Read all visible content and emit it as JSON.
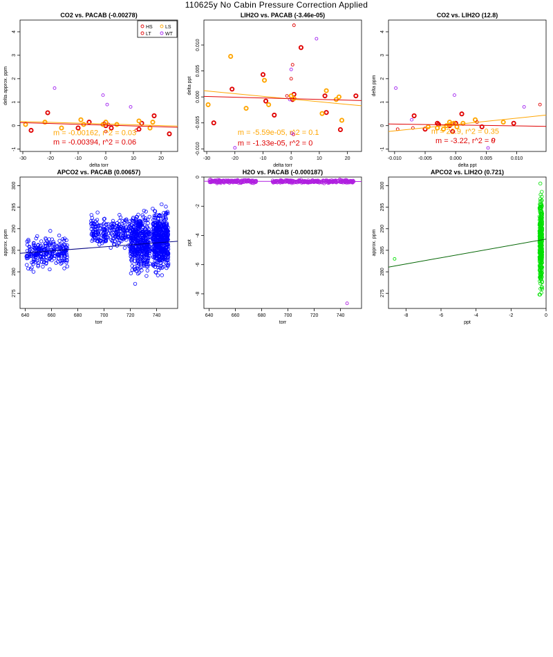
{
  "title": "110625y   No Cabin Pressure Correction Applied",
  "colors": {
    "HS": "#e00000",
    "LS": "#ffa500",
    "LT": "#e00000",
    "WT": "#a020f0",
    "blue": "#0000ff",
    "magenta": "#b020e0",
    "green": "#00e000",
    "darkgreen": "#006400"
  },
  "chart_data": [
    {
      "id": "p1",
      "type": "scatter",
      "title": "CO2 vs. PACAB (-0.00278)",
      "xlabel": "delta torr",
      "ylabel": "delta approx. ppm",
      "xlim": [
        -31,
        26
      ],
      "ylim": [
        -1.1,
        4.5
      ],
      "xticks": [
        -30,
        -20,
        -10,
        0,
        10,
        20
      ],
      "yticks": [
        -1,
        0,
        1,
        2,
        3,
        4
      ],
      "legend": {
        "position": "top-right",
        "entries": [
          {
            "label": "HS",
            "color": "#e00000"
          },
          {
            "label": "LS",
            "color": "#ffa500"
          },
          {
            "label": "LT",
            "color": "#e00000"
          },
          {
            "label": "WT",
            "color": "#a020f0"
          }
        ]
      },
      "series": [
        {
          "name": "HS",
          "color": "#e00000",
          "thick": true,
          "points": [
            [
              -21,
              0.55
            ],
            [
              -27,
              -0.2
            ],
            [
              -10,
              -0.1
            ],
            [
              -6,
              0.15
            ],
            [
              0,
              0.0
            ],
            [
              2,
              -0.1
            ],
            [
              12,
              -0.15
            ],
            [
              17.5,
              0.42
            ],
            [
              23,
              -0.35
            ],
            [
              13,
              0.1
            ]
          ]
        },
        {
          "name": "LS",
          "color": "#ffa500",
          "thick": true,
          "points": [
            [
              -29,
              0.05
            ],
            [
              -22,
              0.15
            ],
            [
              -16,
              -0.1
            ],
            [
              -9,
              0.25
            ],
            [
              -8,
              0.05
            ],
            [
              -1,
              0.05
            ],
            [
              0,
              0.15
            ],
            [
              4,
              0.05
            ],
            [
              12,
              0.2
            ],
            [
              17,
              0.15
            ],
            [
              16,
              -0.1
            ]
          ]
        },
        {
          "name": "LT",
          "color": "#e00000",
          "thick": false,
          "points": [
            [
              -0.5,
              0.1
            ],
            [
              0,
              -0.25
            ],
            [
              1,
              0.05
            ],
            [
              11,
              -0.2
            ]
          ]
        },
        {
          "name": "WT",
          "color": "#a020f0",
          "thick": false,
          "points": [
            [
              -18.5,
              1.6
            ],
            [
              -1,
              1.3
            ],
            [
              9,
              0.8
            ],
            [
              0.5,
              0.9
            ]
          ]
        }
      ],
      "lines": [
        {
          "color": "#ffa500",
          "x": [
            -31,
            26
          ],
          "y": [
            0.18,
            -0.02
          ]
        },
        {
          "color": "#e00000",
          "x": [
            -31,
            26
          ],
          "y": [
            0.13,
            -0.07
          ]
        }
      ],
      "annotations": [
        {
          "text": "m = -0.00162, r^2 = 0.03",
          "color": "#ffa500",
          "x": -19,
          "y": -0.4
        },
        {
          "text": "m = -0.00394, r^2 = 0.06",
          "color": "#e00000",
          "x": -19,
          "y": -0.8
        }
      ]
    },
    {
      "id": "p2",
      "type": "scatter",
      "title": "LIH2O vs. PACAB (-3.46e-05)",
      "xlabel": "delta torr",
      "ylabel": "delta ppt",
      "xlim": [
        -31,
        25
      ],
      "ylim": [
        -0.0105,
        0.0148
      ],
      "xticks": [
        -30,
        -20,
        -10,
        0,
        10,
        20
      ],
      "yticks": [
        -0.01,
        -0.005,
        0,
        0.005,
        0.01
      ],
      "yticklabels": [
        "-0.010",
        "-0.005",
        "0.000",
        "0.005",
        "0.010"
      ],
      "series": [
        {
          "name": "HS",
          "color": "#e00000",
          "thick": true,
          "points": [
            [
              -27.5,
              -0.005
            ],
            [
              -21,
              0.0015
            ],
            [
              -10,
              0.0043
            ],
            [
              -9,
              -0.0008
            ],
            [
              -6,
              -0.0035
            ],
            [
              3.5,
              0.0095
            ],
            [
              0.5,
              -0.0005
            ],
            [
              1,
              0.0005
            ],
            [
              12,
              0.0002
            ],
            [
              12.5,
              -0.003
            ],
            [
              17.5,
              -0.0063
            ],
            [
              23,
              0.0002
            ]
          ]
        },
        {
          "name": "LS",
          "color": "#ffa500",
          "thick": true,
          "points": [
            [
              -29.5,
              -0.0015
            ],
            [
              -21.5,
              0.0078
            ],
            [
              -9.5,
              0.0032
            ],
            [
              -16,
              -0.0022
            ],
            [
              -8,
              -0.0015
            ],
            [
              0,
              0.0002
            ],
            [
              1,
              -0.0003
            ],
            [
              11,
              -0.0032
            ],
            [
              12.5,
              0.0012
            ],
            [
              16,
              -0.0005
            ],
            [
              17,
              0.0
            ],
            [
              18,
              -0.0045
            ]
          ]
        },
        {
          "name": "LT",
          "color": "#e00000",
          "thick": false,
          "points": [
            [
              1,
              0.0138
            ],
            [
              0.5,
              0.0062
            ],
            [
              0,
              0.0035
            ],
            [
              -1.5,
              0.0002
            ],
            [
              0.8,
              -0.0072
            ]
          ]
        },
        {
          "name": "WT",
          "color": "#a020f0",
          "thick": false,
          "points": [
            [
              9,
              0.0112
            ],
            [
              0,
              0.0053
            ],
            [
              -20,
              -0.0098
            ],
            [
              0.3,
              -0.007
            ],
            [
              -0.5,
              -0.0005
            ]
          ]
        }
      ],
      "lines": [
        {
          "color": "#ffa500",
          "x": [
            -31,
            25
          ],
          "y": [
            0.0012,
            -0.0017
          ]
        },
        {
          "color": "#e00000",
          "x": [
            -31,
            25
          ],
          "y": [
            0.0001,
            -0.0007
          ]
        }
      ],
      "annotations": [
        {
          "text": "m = -5.59e-05, r^2 = 0.1",
          "color": "#ffa500",
          "x": -19,
          "y": -0.0073
        },
        {
          "text": "m = -1.33e-05, r^2 = 0",
          "color": "#e00000",
          "x": -19,
          "y": -0.0094
        }
      ]
    },
    {
      "id": "p3",
      "type": "scatter",
      "title": "CO2 vs. LIH2O (12.8)",
      "xlabel": "delta ppt",
      "ylabel": "delta ppm",
      "xlim": [
        -0.011,
        0.0148
      ],
      "ylim": [
        -1.1,
        4.5
      ],
      "xticks": [
        -0.01,
        -0.005,
        0,
        0.005,
        0.01
      ],
      "xticklabels": [
        "-0.010",
        "-0.005",
        "0.000",
        "0.005",
        "0.010"
      ],
      "yticks": [
        -1,
        0,
        1,
        2,
        3,
        4
      ],
      "series": [
        {
          "name": "HS",
          "color": "#e00000",
          "thick": true,
          "points": [
            [
              -0.0068,
              0.42
            ],
            [
              -0.005,
              -0.15
            ],
            [
              -0.003,
              0.1
            ],
            [
              -0.0028,
              0.05
            ],
            [
              -0.001,
              0.0
            ],
            [
              0.0,
              0.1
            ],
            [
              0.001,
              0.5
            ],
            [
              0.0043,
              -0.05
            ],
            [
              0.0095,
              0.1
            ],
            [
              -0.0005,
              -0.25
            ]
          ]
        },
        {
          "name": "LS",
          "color": "#ffa500",
          "thick": true,
          "points": [
            [
              -0.0045,
              -0.05
            ],
            [
              -0.003,
              -0.1
            ],
            [
              -0.002,
              -0.15
            ],
            [
              -0.0015,
              0.0
            ],
            [
              -0.001,
              0.15
            ],
            [
              -0.0003,
              0.1
            ],
            [
              0.0002,
              -0.05
            ],
            [
              0.0012,
              0.1
            ],
            [
              0.0032,
              0.25
            ],
            [
              0.0078,
              0.15
            ],
            [
              -0.0008,
              0.05
            ]
          ]
        },
        {
          "name": "LT",
          "color": "#e00000",
          "thick": false,
          "points": [
            [
              -0.0095,
              -0.15
            ],
            [
              -0.007,
              -0.1
            ],
            [
              0.0035,
              0.15
            ],
            [
              0.0062,
              -0.6
            ]
          ]
        },
        {
          "name": "WT",
          "color": "#a020f0",
          "thick": false,
          "points": [
            [
              -0.0098,
              1.6
            ],
            [
              -0.0072,
              0.25
            ],
            [
              -0.0002,
              1.3
            ],
            [
              0.0112,
              0.8
            ],
            [
              0.0053,
              -0.95
            ]
          ]
        },
        {
          "name": "",
          "color": "#e00000",
          "thick": false,
          "points": [
            [
              0.0138,
              0.9
            ]
          ]
        }
      ],
      "lines": [
        {
          "color": "#ffa500",
          "x": [
            -0.011,
            0.0148
          ],
          "y": [
            -0.25,
            0.45
          ]
        },
        {
          "color": "#e00000",
          "x": [
            -0.011,
            0.0148
          ],
          "y": [
            0.07,
            -0.03
          ]
        }
      ],
      "annotations": [
        {
          "text": "m = 22.9, r^2 = 0.35",
          "color": "#ffa500",
          "x": -0.004,
          "y": -0.35
        },
        {
          "text": "m = -3.22, r^2 = 0",
          "color": "#e00000",
          "x": -0.0033,
          "y": -0.75
        }
      ]
    },
    {
      "id": "p4",
      "type": "scatter",
      "title": "APCO2 vs. PACAB (0.00657)",
      "xlabel": "torr",
      "ylabel": "approx. ppm",
      "xlim": [
        636,
        756
      ],
      "ylim": [
        271.5,
        302
      ],
      "xticks": [
        640,
        660,
        680,
        700,
        720,
        740
      ],
      "yticks": [
        275,
        280,
        285,
        290,
        295,
        300
      ],
      "clusters": [
        {
          "color": "#0000ff",
          "count": 260,
          "xmin": 640,
          "xmax": 672,
          "ymean": 284.5,
          "ysd": 1.7,
          "ymin": 279,
          "ymax": 289.5,
          "seed": 11
        },
        {
          "color": "#0000ff",
          "count": 300,
          "xmin": 690,
          "xmax": 730,
          "ymean": 289.3,
          "ysd": 1.6,
          "ymin": 283,
          "ymax": 294,
          "seed": 23
        },
        {
          "color": "#0000ff",
          "count": 380,
          "xmin": 720,
          "xmax": 735,
          "ymean": 286.5,
          "ysd": 3.0,
          "ymin": 272.5,
          "ymax": 300.5,
          "seed": 37
        },
        {
          "color": "#0000ff",
          "count": 520,
          "xmin": 737,
          "xmax": 749,
          "ymean": 287,
          "ysd": 3.0,
          "ymin": 279,
          "ymax": 297.5,
          "seed": 51
        }
      ],
      "lines": [
        {
          "color": "#000080",
          "x": [
            636,
            756
          ],
          "y": [
            284.3,
            287.1
          ]
        }
      ]
    },
    {
      "id": "p5",
      "type": "scatter",
      "title": "H2O vs. PACAB (-0.000187)",
      "xlabel": "torr",
      "ylabel": "ppt",
      "xlim": [
        636,
        756
      ],
      "ylim": [
        -9,
        0
      ],
      "xticks": [
        640,
        660,
        680,
        700,
        720,
        740
      ],
      "yticks": [
        -8,
        -6,
        -4,
        -2,
        0
      ],
      "clusters": [
        {
          "color": "#b020e0",
          "count": 160,
          "xmin": 640,
          "xmax": 676,
          "ymean": -0.3,
          "ysd": 0.05,
          "ymin": -0.45,
          "ymax": -0.15,
          "seed": 61
        },
        {
          "color": "#b020e0",
          "count": 260,
          "xmin": 688,
          "xmax": 750,
          "ymean": -0.3,
          "ysd": 0.05,
          "ymin": -0.45,
          "ymax": -0.15,
          "seed": 73
        }
      ],
      "points": [
        {
          "color": "#b020e0",
          "x": 745,
          "y": -8.65
        }
      ],
      "lines": [
        {
          "color": "#b020e0",
          "x": [
            636,
            756
          ],
          "y": [
            -0.29,
            -0.31
          ]
        }
      ]
    },
    {
      "id": "p6",
      "type": "scatter",
      "title": "APCO2 vs. LIH2O (0.721)",
      "xlabel": "ppt",
      "ylabel": "approx. ppm",
      "xlim": [
        -9,
        0
      ],
      "ylim": [
        271.5,
        302
      ],
      "xticks": [
        -8,
        -6,
        -4,
        -2,
        0
      ],
      "yticks": [
        275,
        280,
        285,
        290,
        295,
        300
      ],
      "clusters": [
        {
          "color": "#00e000",
          "count": 340,
          "xmin": -0.38,
          "xmax": -0.22,
          "ymean": 287,
          "ysd": 5,
          "ymin": 272.5,
          "ymax": 300.5,
          "seed": 89
        }
      ],
      "points": [
        {
          "color": "#00e000",
          "x": -8.65,
          "y": 283
        }
      ],
      "lines": [
        {
          "color": "#006400",
          "x": [
            -9,
            0
          ],
          "y": [
            281.1,
            287.6
          ]
        }
      ]
    }
  ]
}
